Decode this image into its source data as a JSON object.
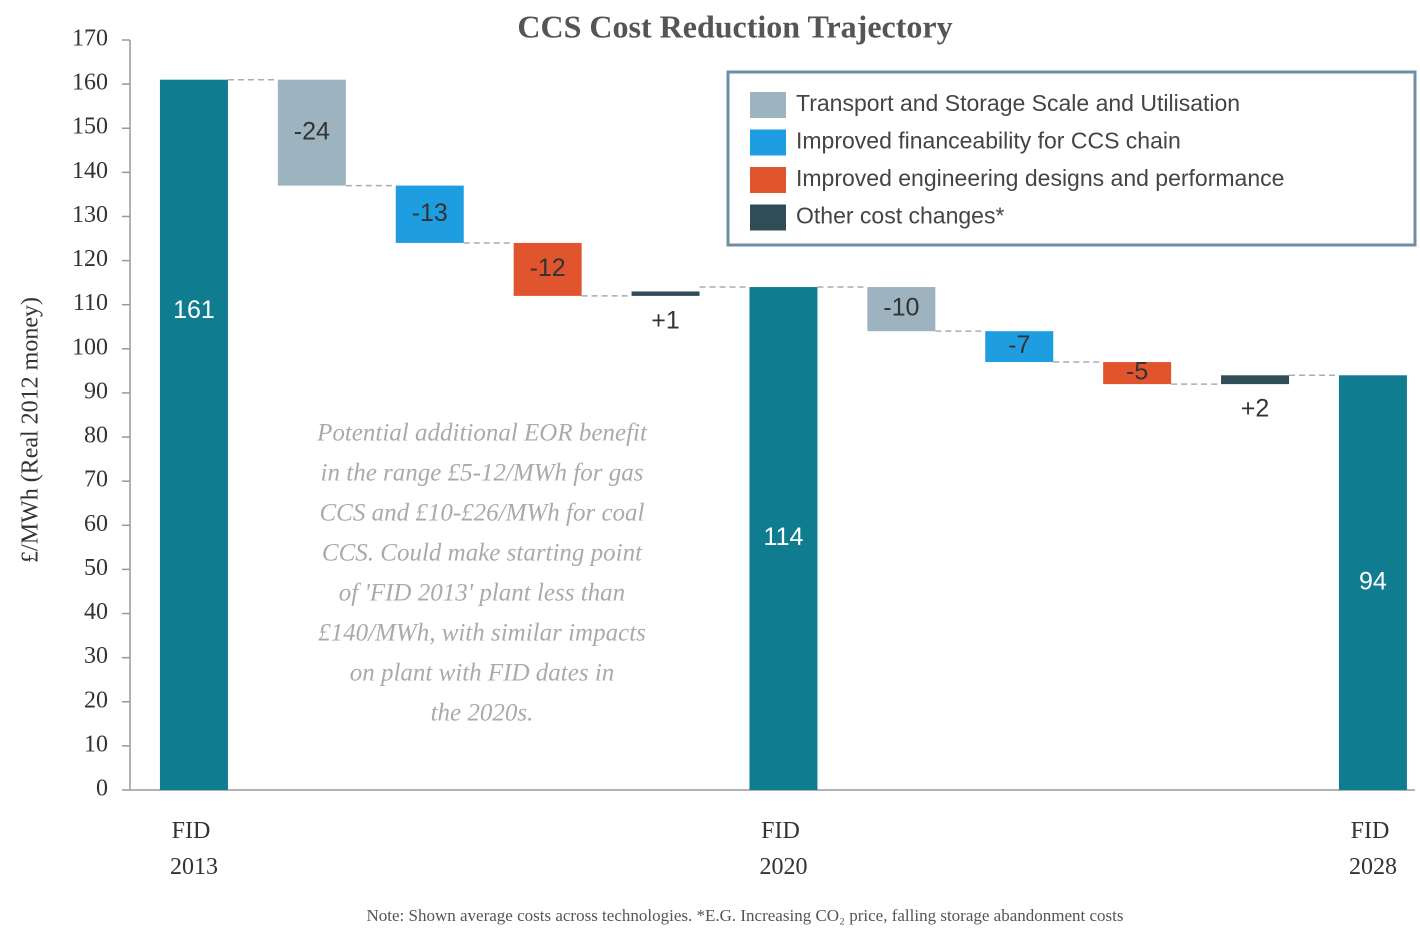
{
  "chart_data": {
    "type": "waterfall",
    "title": "CCS Cost Reduction Trajectory",
    "ylabel": "£/MWh (Real 2012 money)",
    "categories": [
      "FID 2013",
      null,
      null,
      null,
      null,
      "FID 2020",
      null,
      null,
      null,
      null,
      "FID 2028"
    ],
    "values": [
      161,
      -24,
      -13,
      -12,
      1,
      114,
      -10,
      -7,
      -5,
      2,
      94
    ],
    "value_labels": [
      "161",
      "-24",
      "-13",
      "-12",
      "+1",
      "114",
      "-10",
      "-7",
      "-5",
      "+2",
      "94"
    ],
    "is_total": [
      true,
      false,
      false,
      false,
      false,
      true,
      false,
      false,
      false,
      false,
      true
    ],
    "colors": [
      "#0f7d8f",
      "#9db3c0",
      "#1e9ee0",
      "#e0552e",
      "#2f4c57",
      "#0f7d8f",
      "#9db3c0",
      "#1e9ee0",
      "#e0552e",
      "#2f4c57",
      "#0f7d8f"
    ],
    "legend": [
      {
        "name": "Transport and Storage Scale and Utilisation",
        "color": "#9db3c0"
      },
      {
        "name": "Improved financeability for CCS chain",
        "color": "#1e9ee0"
      },
      {
        "name": "Improved engineering designs and performance",
        "color": "#e0552e"
      },
      {
        "name": "Other cost changes*",
        "color": "#2f4c57"
      }
    ],
    "ylim": [
      0,
      170
    ],
    "yticks": [
      0,
      10,
      20,
      30,
      40,
      50,
      60,
      70,
      80,
      90,
      100,
      110,
      120,
      130,
      140,
      150,
      160,
      170
    ],
    "annotation": [
      "Potential additional EOR benefit",
      "in the range £5-12/MWh for gas",
      "CCS and £10-£26/MWh for coal",
      "CCS. Could make starting point",
      "of 'FID 2013' plant less than",
      "£140/MWh, with similar impacts",
      "on plant with FID dates in",
      "the 2020s."
    ],
    "note": "Note: Shown average costs across technologies. *E.G. Increasing CO₂ price, falling storage abandonment costs"
  }
}
